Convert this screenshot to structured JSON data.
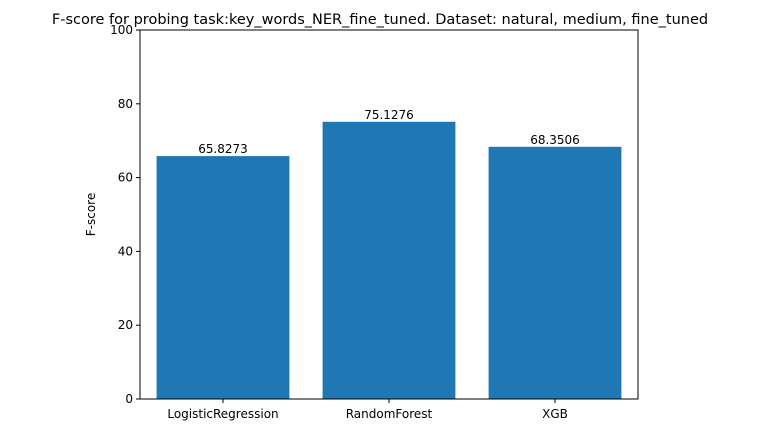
{
  "chart_data": {
    "type": "bar",
    "title": "F-score for probing task:key_words_NER_fine_tuned. Dataset: natural, medium, fine_tuned",
    "xlabel": "",
    "ylabel": "F-score",
    "categories": [
      "LogisticRegression",
      "RandomForest",
      "XGB"
    ],
    "values": [
      65.8273,
      75.1276,
      68.3506
    ],
    "value_labels": [
      "65.8273",
      "75.1276",
      "68.3506"
    ],
    "ylim": [
      0,
      100
    ],
    "yticks": [
      0,
      20,
      40,
      60,
      80,
      100
    ],
    "bar_color": "#1f77b4",
    "grid": false,
    "legend": "none"
  }
}
